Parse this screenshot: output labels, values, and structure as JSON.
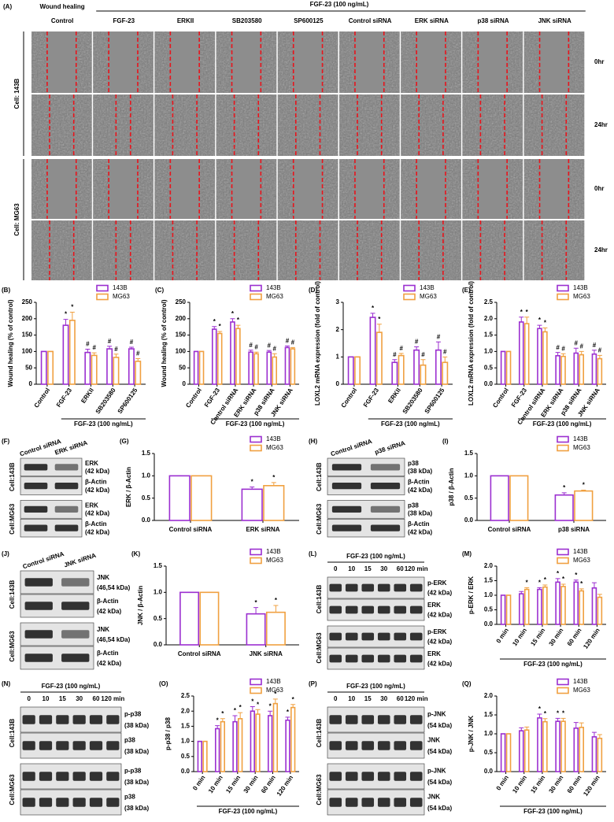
{
  "micrograph": {
    "label": "(A)",
    "header_left": "Wound healing",
    "header_group": "FGF-23 (100 ng/mL)",
    "columns": [
      "Control",
      "FGF-23",
      "ERKII",
      "SB203580",
      "SP600125",
      "Control siRNA",
      "ERK siRNA",
      "p38 siRNA",
      "JNK siRNA"
    ],
    "rows": [
      {
        "cell": "Cell: 143B",
        "times": [
          "0hr",
          "24hr"
        ]
      },
      {
        "cell": "Cell: MG63",
        "times": [
          "0hr",
          "24hr"
        ]
      }
    ]
  },
  "chart_data": [
    {
      "type": "bar",
      "label": "(B)",
      "ylabel": "Wound healing (% of control)",
      "group_label": "FGF-23 (100 ng/mL)",
      "categories": [
        "Control",
        "FGF-23",
        "ERKII",
        "SB203580",
        "SP600125"
      ],
      "series": [
        {
          "name": "143B",
          "color": "#9b2fd0",
          "values": [
            100,
            180,
            97,
            108,
            108
          ],
          "errors": [
            0,
            18,
            10,
            8,
            5
          ],
          "markers": [
            null,
            "*",
            "#",
            "#",
            "#"
          ]
        },
        {
          "name": "MG63",
          "color": "#f0a040",
          "values": [
            100,
            195,
            88,
            82,
            70
          ],
          "errors": [
            0,
            25,
            8,
            10,
            8
          ],
          "markers": [
            null,
            "*",
            "#",
            "#",
            "#"
          ]
        }
      ],
      "ylim": [
        0,
        250
      ],
      "yticks": [
        0,
        50,
        100,
        150,
        200,
        250
      ]
    },
    {
      "type": "bar",
      "label": "(C)",
      "ylabel": "Wound healing (% of control)",
      "group_label": "FGF-23 (100 ng/mL)",
      "categories": [
        "Control",
        "FGF-23",
        "Control siRNA",
        "ERK siRNA",
        "p38 siRNA",
        "JNK siRNA"
      ],
      "series": [
        {
          "name": "143B",
          "color": "#9b2fd0",
          "values": [
            100,
            168,
            190,
            98,
            98,
            112
          ],
          "errors": [
            0,
            8,
            10,
            6,
            5,
            5
          ],
          "markers": [
            null,
            "*",
            "*",
            "#",
            "#",
            "#"
          ]
        },
        {
          "name": "MG63",
          "color": "#f0a040",
          "values": [
            100,
            155,
            170,
            93,
            83,
            108
          ],
          "errors": [
            0,
            6,
            10,
            5,
            10,
            4
          ],
          "markers": [
            null,
            "*",
            "*",
            "#",
            "#",
            "#"
          ]
        }
      ],
      "ylim": [
        0,
        250
      ],
      "yticks": [
        0,
        50,
        100,
        150,
        200,
        250
      ]
    },
    {
      "type": "bar",
      "label": "(D)",
      "ylabel": "LOXL2 mRNA expression (fold of control)",
      "group_label": "FGF-23 (100 ng/mL)",
      "categories": [
        "Control",
        "FGF-23",
        "ERKII",
        "SB203580",
        "SP600125"
      ],
      "series": [
        {
          "name": "143B",
          "color": "#9b2fd0",
          "values": [
            1,
            2.45,
            0.8,
            1.25,
            1.25
          ],
          "errors": [
            0,
            0.15,
            0.1,
            0.12,
            0.3
          ],
          "markers": [
            null,
            "*",
            "#",
            "#",
            "#"
          ]
        },
        {
          "name": "MG63",
          "color": "#f0a040",
          "values": [
            1,
            1.9,
            1.05,
            0.7,
            0.8
          ],
          "errors": [
            0,
            0.3,
            0.08,
            0.2,
            0.2
          ],
          "markers": [
            null,
            "*",
            "#",
            "#",
            "#"
          ]
        }
      ],
      "ylim": [
        0,
        3
      ],
      "yticks": [
        0,
        1,
        2,
        3
      ]
    },
    {
      "type": "bar",
      "label": "(E)",
      "ylabel": "LOXL2 mRNA expression (fold of control)",
      "group_label": "FGF-23 (100 ng/mL)",
      "categories": [
        "Control",
        "FGF-23",
        "Control siRNA",
        "ERK siRNA",
        "p38 siRNA",
        "JNK siRNA"
      ],
      "series": [
        {
          "name": "143B",
          "color": "#9b2fd0",
          "values": [
            1,
            1.9,
            1.7,
            0.87,
            0.95,
            0.92
          ],
          "errors": [
            0,
            0.15,
            0.1,
            0.1,
            0.15,
            0.12
          ],
          "markers": [
            null,
            "*",
            "*",
            "#",
            "#",
            "#"
          ]
        },
        {
          "name": "MG63",
          "color": "#f0a040",
          "values": [
            1,
            1.85,
            1.6,
            0.85,
            0.9,
            0.78
          ],
          "errors": [
            0,
            0.2,
            0.12,
            0.08,
            0.1,
            0.1
          ],
          "markers": [
            null,
            "*",
            "*",
            "#",
            "#",
            "#"
          ]
        }
      ],
      "ylim": [
        0,
        2.5
      ],
      "yticks": [
        {
          "value": 0,
          "label": "0.0"
        },
        {
          "value": 0.5,
          "label": "0.5"
        },
        {
          "value": 1,
          "label": "1.0"
        },
        {
          "value": 1.5,
          "label": "1.5"
        },
        {
          "value": 2,
          "label": "2.0"
        },
        {
          "value": 2.5,
          "label": "2.5"
        }
      ]
    },
    {
      "type": "bar",
      "label": "(G)",
      "ylabel": "ERK / β-Actin",
      "categories": [
        "Control siRNA",
        "ERK siRNA"
      ],
      "series": [
        {
          "name": "143B",
          "color": "#9b2fd0",
          "values": [
            1,
            0.7
          ],
          "errors": [
            0,
            0.05
          ],
          "markers": [
            null,
            "*"
          ]
        },
        {
          "name": "MG63",
          "color": "#f0a040",
          "values": [
            1,
            0.78
          ],
          "errors": [
            0,
            0.07
          ],
          "markers": [
            null,
            "*"
          ]
        }
      ],
      "ylim": [
        0,
        1.5
      ],
      "yticks": [
        {
          "value": 0,
          "label": "0.0"
        },
        {
          "value": 0.5,
          "label": "0.5"
        },
        {
          "value": 1,
          "label": "1.0"
        },
        {
          "value": 1.5,
          "label": "1.5"
        }
      ]
    },
    {
      "type": "bar",
      "label": "(I)",
      "ylabel": "p38 / β-Actin",
      "categories": [
        "Control siRNA",
        "p38 siRNA"
      ],
      "series": [
        {
          "name": "143B",
          "color": "#9b2fd0",
          "values": [
            1,
            0.57
          ],
          "errors": [
            0,
            0.05
          ],
          "markers": [
            null,
            "*"
          ]
        },
        {
          "name": "MG63",
          "color": "#f0a040",
          "values": [
            1,
            0.66
          ],
          "errors": [
            0,
            0.02
          ],
          "markers": [
            null,
            "*"
          ]
        }
      ],
      "ylim": [
        0,
        1.5
      ],
      "yticks": [
        {
          "value": 0,
          "label": "0.0"
        },
        {
          "value": 0.5,
          "label": "0.5"
        },
        {
          "value": 1,
          "label": "1.0"
        },
        {
          "value": 1.5,
          "label": "1.5"
        }
      ]
    },
    {
      "type": "bar",
      "label": "(K)",
      "ylabel": "JNK / β-Actin",
      "categories": [
        "Control siRNA",
        "JNK siRNA"
      ],
      "series": [
        {
          "name": "143B",
          "color": "#9b2fd0",
          "values": [
            1,
            0.59
          ],
          "errors": [
            0,
            0.12
          ],
          "markers": [
            null,
            "*"
          ]
        },
        {
          "name": "MG63",
          "color": "#f0a040",
          "values": [
            1,
            0.62
          ],
          "errors": [
            0,
            0.13
          ],
          "markers": [
            null,
            "*"
          ]
        }
      ],
      "ylim": [
        0,
        1.5
      ],
      "yticks": [
        {
          "value": 0,
          "label": "0.0"
        },
        {
          "value": 0.5,
          "label": "0.5"
        },
        {
          "value": 1,
          "label": "1.0"
        },
        {
          "value": 1.5,
          "label": "1.5"
        }
      ]
    },
    {
      "type": "bar",
      "label": "(M)",
      "ylabel": "p-ERK / ERK",
      "group_label": "FGF-23 (100 ng/mL)",
      "categories": [
        "0 min",
        "10 min",
        "15 min",
        "30 min",
        "60 min",
        "120 min"
      ],
      "series": [
        {
          "name": "143B",
          "color": "#9b2fd0",
          "values": [
            1,
            1.05,
            1.2,
            1.45,
            1.45,
            1.25
          ],
          "errors": [
            0,
            0.08,
            0.06,
            0.12,
            0.07,
            0.18
          ],
          "markers": [
            null,
            null,
            "*",
            "*",
            "*",
            null
          ]
        },
        {
          "name": "MG63",
          "color": "#f0a040",
          "values": [
            1,
            1.2,
            1.28,
            1.3,
            1.15,
            0.93
          ],
          "errors": [
            0,
            0.06,
            0.07,
            0.08,
            0.07,
            0.1
          ],
          "markers": [
            null,
            "*",
            "*",
            "*",
            "*",
            null
          ]
        }
      ],
      "ylim": [
        0,
        2
      ],
      "yticks": [
        {
          "value": 0,
          "label": "0.0"
        },
        {
          "value": 0.5,
          "label": "0.5"
        },
        {
          "value": 1,
          "label": "1.0"
        },
        {
          "value": 1.5,
          "label": "1.5"
        },
        {
          "value": 2,
          "label": "2.0"
        }
      ]
    },
    {
      "type": "bar",
      "label": "(O)",
      "ylabel": "p-p38 / p38",
      "group_label": "FGF-23 (100 ng/mL)",
      "categories": [
        "0 min",
        "10 min",
        "15 min",
        "30 min",
        "60 min",
        "120 min"
      ],
      "series": [
        {
          "name": "143B",
          "color": "#9b2fd0",
          "values": [
            1,
            1.42,
            1.65,
            2.0,
            1.85,
            1.7
          ],
          "errors": [
            0,
            0.1,
            0.2,
            0.15,
            0.15,
            0.1
          ],
          "markers": [
            null,
            "*",
            "*",
            "*",
            "*",
            "*"
          ]
        },
        {
          "name": "MG63",
          "color": "#f0a040",
          "values": [
            1,
            1.65,
            1.75,
            1.9,
            2.25,
            2.12
          ],
          "errors": [
            0,
            0.1,
            0.2,
            0.15,
            0.15,
            0.1
          ],
          "markers": [
            null,
            "*",
            "*",
            "*",
            "*",
            "*"
          ]
        }
      ],
      "ylim": [
        0,
        2.5
      ],
      "yticks": [
        {
          "value": 0,
          "label": "0.0"
        },
        {
          "value": 0.5,
          "label": "0.5"
        },
        {
          "value": 1,
          "label": "1.0"
        },
        {
          "value": 1.5,
          "label": "1.5"
        },
        {
          "value": 2,
          "label": "2.0"
        },
        {
          "value": 2.5,
          "label": "2.5"
        }
      ]
    },
    {
      "type": "bar",
      "label": "(Q)",
      "ylabel": "p-JNK / JNK",
      "group_label": "FGF-23 (100 ng/mL)",
      "categories": [
        "0 min",
        "10 min",
        "15 min",
        "30 min",
        "60 min",
        "120 min"
      ],
      "series": [
        {
          "name": "143B",
          "color": "#9b2fd0",
          "values": [
            1,
            1.08,
            1.42,
            1.33,
            1.15,
            0.92
          ],
          "errors": [
            0,
            0.08,
            0.1,
            0.08,
            0.15,
            0.12
          ],
          "markers": [
            null,
            null,
            "*",
            "*",
            null,
            null
          ]
        },
        {
          "name": "MG63",
          "color": "#f0a040",
          "values": [
            1,
            1.1,
            1.32,
            1.33,
            1.17,
            0.88
          ],
          "errors": [
            0,
            0.08,
            0.08,
            0.08,
            0.12,
            0.1
          ],
          "markers": [
            null,
            null,
            "*",
            "*",
            null,
            null
          ]
        }
      ],
      "ylim": [
        0,
        2
      ],
      "yticks": [
        {
          "value": 0,
          "label": "0.0"
        },
        {
          "value": 0.5,
          "label": "0.5"
        },
        {
          "value": 1,
          "label": "1.0"
        },
        {
          "value": 1.5,
          "label": "1.5"
        },
        {
          "value": 2,
          "label": "2.0"
        }
      ]
    }
  ],
  "blots": [
    {
      "label": "(F)",
      "lanes": [
        "Control siRNA",
        "ERK siRNA"
      ],
      "groups": [
        {
          "cell": "Cell:143B",
          "bands": [
            {
              "name": "ERK",
              "size": "(42 kDa)"
            },
            {
              "name": "β-Actin",
              "size": "(42 kDa)"
            }
          ]
        },
        {
          "cell": "Cell:MG63",
          "bands": [
            {
              "name": "ERK",
              "size": "(42 kDa)"
            },
            {
              "name": "β-Actin",
              "size": "(42 kDa)"
            }
          ]
        }
      ]
    },
    {
      "label": "(H)",
      "lanes": [
        "Control siRNA",
        "p38 siRNA"
      ],
      "groups": [
        {
          "cell": "Cell:143B",
          "bands": [
            {
              "name": "p38",
              "size": "(38 kDa)"
            },
            {
              "name": "β-Actin",
              "size": "(42 kDa)"
            }
          ]
        },
        {
          "cell": "Cell:MG63",
          "bands": [
            {
              "name": "p38",
              "size": "(38 kDa)"
            },
            {
              "name": "β-Actin",
              "size": "(42 kDa)"
            }
          ]
        }
      ]
    },
    {
      "label": "(J)",
      "lanes": [
        "Control siRNA",
        "JNK siRNA"
      ],
      "groups": [
        {
          "cell": "Cell:143B",
          "bands": [
            {
              "name": "JNK",
              "size": "(46,54 kDa)"
            },
            {
              "name": "β-Actin",
              "size": "(42 kDa)"
            }
          ]
        },
        {
          "cell": "Cell:MG63",
          "bands": [
            {
              "name": "JNK",
              "size": "(46,54 kDa)"
            },
            {
              "name": "β-Actin",
              "size": "(42 kDa)"
            }
          ]
        }
      ]
    },
    {
      "label": "(L)",
      "treatment": "FGF-23 (100 ng/mL)",
      "lanes": [
        "0",
        "10",
        "15",
        "30",
        "60",
        "120 min"
      ],
      "groups": [
        {
          "cell": "Cell:143B",
          "bands": [
            {
              "name": "p-ERK",
              "size": "(42 kDa)"
            },
            {
              "name": "ERK",
              "size": "(42 kDa)"
            }
          ]
        },
        {
          "cell": "Cell:MG63",
          "bands": [
            {
              "name": "p-ERK",
              "size": "(42 kDa)"
            },
            {
              "name": "ERK",
              "size": "(42 kDa)"
            }
          ]
        }
      ]
    },
    {
      "label": "(N)",
      "treatment": "FGF-23 (100 ng/mL)",
      "lanes": [
        "0",
        "10",
        "15",
        "30",
        "60",
        "120 min"
      ],
      "groups": [
        {
          "cell": "Cell:143B",
          "bands": [
            {
              "name": "p-p38",
              "size": "(38 kDa)"
            },
            {
              "name": "p38",
              "size": "(38 kDa)"
            }
          ]
        },
        {
          "cell": "Cell:MG63",
          "bands": [
            {
              "name": "p-p38",
              "size": "(38 kDa)"
            },
            {
              "name": "p38",
              "size": "(38 kDa)"
            }
          ]
        }
      ]
    },
    {
      "label": "(P)",
      "treatment": "FGF-23 (100 ng/mL)",
      "lanes": [
        "0",
        "10",
        "15",
        "30",
        "60",
        "120 min"
      ],
      "groups": [
        {
          "cell": "Cell:143B",
          "bands": [
            {
              "name": "p-JNK",
              "size": "(54 kDa)"
            },
            {
              "name": "JNK",
              "size": "(54 kDa)"
            }
          ]
        },
        {
          "cell": "Cell:MG63",
          "bands": [
            {
              "name": "p-JNK",
              "size": "(54 kDa)"
            },
            {
              "name": "JNK",
              "size": "(54 kDa)"
            }
          ]
        }
      ]
    }
  ]
}
